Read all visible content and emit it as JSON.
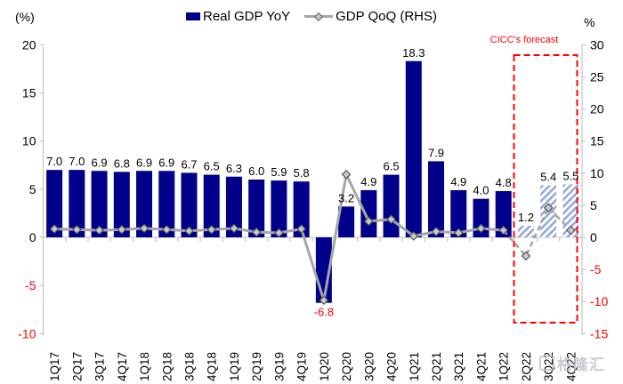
{
  "legend": [
    {
      "label": "Real GDP YoY",
      "swatch": "bar",
      "color": "#00008B"
    },
    {
      "label": "GDP QoQ (RHS)",
      "swatch": "line-diamond",
      "color": "#A6A6A6"
    }
  ],
  "annotations": {
    "forecast_label": "CICC's forecast",
    "forecast_quarters": [
      "2Q22",
      "3Q22",
      "4Q22"
    ]
  },
  "watermark": {
    "text": "格隆汇"
  },
  "chart_data": {
    "type": "bar",
    "subtype": "bar+line combo, dual axis",
    "categories": [
      "1Q17",
      "2Q17",
      "3Q17",
      "4Q17",
      "1Q18",
      "2Q18",
      "3Q18",
      "4Q18",
      "1Q19",
      "2Q19",
      "3Q19",
      "4Q19",
      "1Q20",
      "2Q20",
      "3Q20",
      "4Q20",
      "1Q21",
      "2Q21",
      "3Q21",
      "4Q21",
      "1Q22",
      "2Q22",
      "3Q22",
      "4Q22"
    ],
    "series": [
      {
        "name": "Real GDP YoY",
        "type": "bar",
        "axis": "left",
        "unit": "%",
        "values": [
          7.0,
          7.0,
          6.9,
          6.8,
          6.9,
          6.9,
          6.7,
          6.5,
          6.3,
          6.0,
          5.9,
          5.8,
          -6.8,
          3.2,
          4.9,
          6.5,
          18.3,
          7.9,
          4.9,
          4.0,
          4.8,
          1.2,
          5.4,
          5.5
        ],
        "labels": [
          "7.0",
          "7.0",
          "6.9",
          "6.8",
          "6.9",
          "6.9",
          "6.7",
          "6.5",
          "6.3",
          "6.0",
          "5.9",
          "5.8",
          "-6.8",
          "3.2",
          "4.9",
          "6.5",
          "18.3",
          "7.9",
          "4.9",
          "4.0",
          "4.8",
          "1.2",
          "5.4",
          "5.5"
        ]
      },
      {
        "name": "GDP QoQ (RHS)",
        "type": "line",
        "axis": "right",
        "unit": "%",
        "marker": "diamond",
        "approximate": true,
        "values": [
          1.3,
          1.2,
          1.1,
          1.2,
          1.4,
          1.2,
          1.0,
          1.2,
          1.4,
          0.8,
          0.7,
          1.3,
          -9.8,
          9.8,
          2.5,
          2.8,
          0.2,
          0.9,
          0.7,
          1.4,
          1.1,
          -2.9,
          4.6,
          1.1
        ]
      }
    ],
    "forecast_start_index": 21,
    "left_axis": {
      "title": "(%)",
      "ticks": [
        20,
        15,
        10,
        5,
        0,
        -5,
        -10
      ],
      "range": [
        -10,
        20
      ]
    },
    "right_axis": {
      "title": "%",
      "ticks": [
        30,
        25,
        20,
        15,
        10,
        5,
        0,
        -5,
        -10,
        -15
      ],
      "range": [
        -15,
        30
      ]
    },
    "grid": false,
    "legend_position": "top-center",
    "colors": {
      "bar": "#00008B",
      "forecast_bar": "#95A9D9",
      "line": "#A6A6A6",
      "marker_fill": "#C9C9C9",
      "marker_stroke": "#595959",
      "negative_text": "#FF0000",
      "forecast_box": "#FF0000",
      "axis_line": "#C9C9C9",
      "text": "#000000"
    }
  }
}
